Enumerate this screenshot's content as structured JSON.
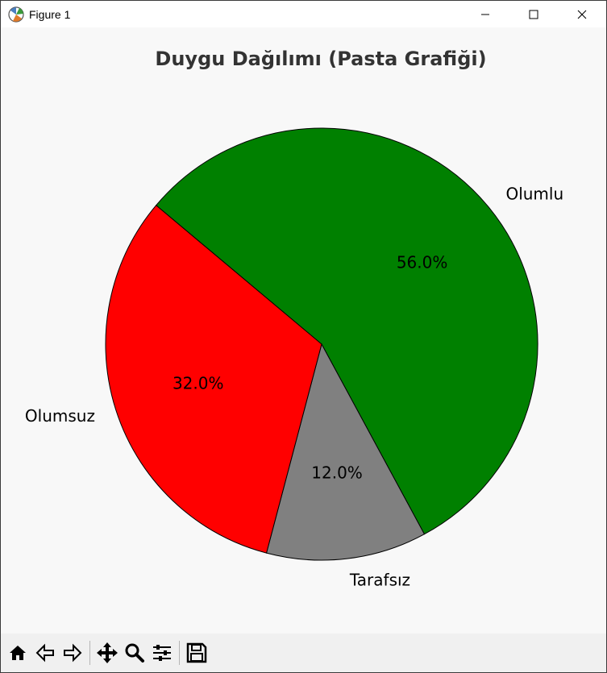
{
  "window": {
    "title": "Figure 1",
    "icons": [
      "app-icon",
      "minimize-icon",
      "maximize-icon",
      "close-icon"
    ]
  },
  "toolbar": {
    "buttons": [
      "home-icon",
      "back-icon",
      "forward-icon",
      "pan-icon",
      "zoom-icon",
      "configure-subplots-icon",
      "save-icon"
    ]
  },
  "chart_data": {
    "type": "pie",
    "title": "Duygu Dağılımı (Pasta Grafiği)",
    "labels": [
      "Olumlu",
      "Tarafsız",
      "Olumsuz"
    ],
    "values": [
      56.0,
      12.0,
      32.0
    ],
    "autopct_labels": [
      "56.0%",
      "12.0%",
      "32.0%"
    ],
    "colors": [
      "#008000",
      "#808080",
      "#ff0000"
    ],
    "startangle": 140,
    "counterclock": false,
    "edgecolor": "#000000"
  }
}
